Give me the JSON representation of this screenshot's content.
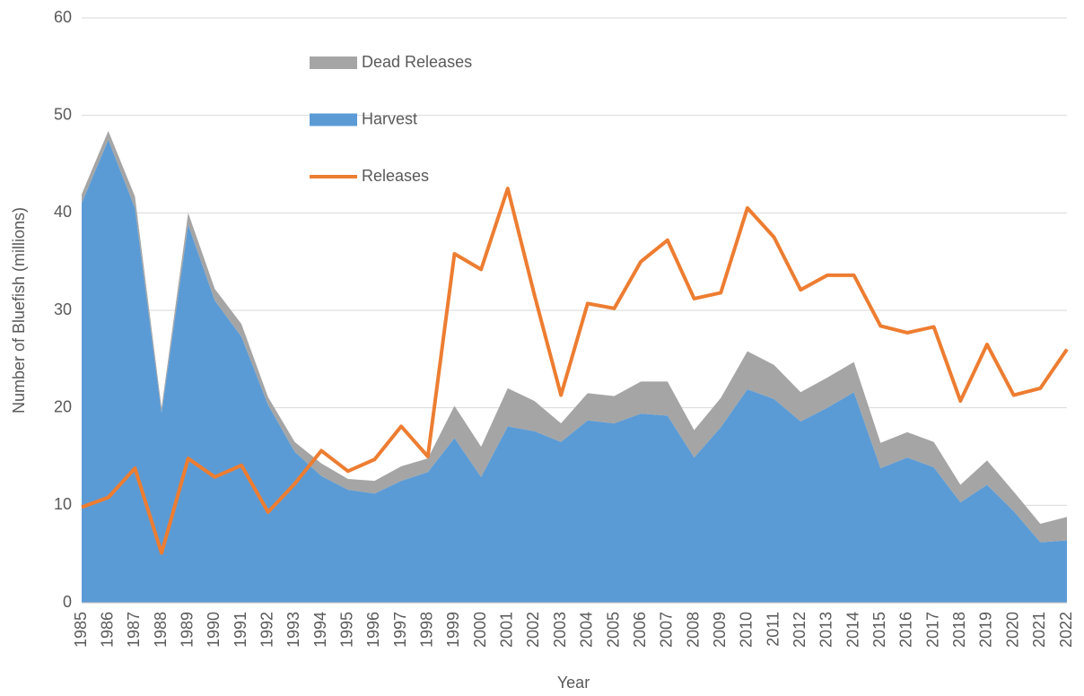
{
  "chart_data": {
    "type": "area",
    "xlabel": "Year",
    "ylabel": "Number of Bluefish (millions)",
    "categories": [
      "1985",
      "1986",
      "1987",
      "1988",
      "1989",
      "1990",
      "1991",
      "1992",
      "1993",
      "1994",
      "1995",
      "1996",
      "1997",
      "1998",
      "1999",
      "2000",
      "2001",
      "2002",
      "2003",
      "2004",
      "2005",
      "2006",
      "2007",
      "2008",
      "2009",
      "2010",
      "2011",
      "2012",
      "2013",
      "2014",
      "2015",
      "2016",
      "2017",
      "2018",
      "2019",
      "2020",
      "2021",
      "2022"
    ],
    "series": [
      {
        "name": "Harvest",
        "type": "area",
        "color": "#5b9bd5",
        "values": [
          41,
          47.5,
          40.5,
          19.5,
          38.8,
          31,
          27.3,
          20.3,
          15.5,
          13,
          11.6,
          11.2,
          12.5,
          13.4,
          16.9,
          12.9,
          18.1,
          17.6,
          16.5,
          18.7,
          18.4,
          19.4,
          19.2,
          14.9,
          18.0,
          21.9,
          20.9,
          18.6,
          20.0,
          21.6,
          13.8,
          14.9,
          13.9,
          10.3,
          12.1,
          9.4,
          6.2,
          6.4
        ]
      },
      {
        "name": "Dead Releases",
        "type": "area",
        "color": "#a5a5a5",
        "values": [
          0.9,
          0.9,
          1.2,
          0.5,
          1.2,
          1.2,
          1.3,
          0.8,
          1.0,
          1.3,
          1.1,
          1.3,
          1.5,
          1.4,
          3.3,
          3.1,
          3.9,
          3.1,
          1.9,
          2.8,
          2.8,
          3.3,
          3.5,
          2.8,
          3.0,
          3.9,
          3.5,
          3.0,
          3.1,
          3.1,
          2.6,
          2.6,
          2.6,
          1.8,
          2.5,
          2.0,
          1.9,
          2.4
        ]
      },
      {
        "name": "Releases",
        "type": "line",
        "color": "#ed7d31",
        "values": [
          9.8,
          10.8,
          13.8,
          5.1,
          14.8,
          12.9,
          14.1,
          9.3,
          12.2,
          15.6,
          13.5,
          14.7,
          18.1,
          15.0,
          35.8,
          34.2,
          42.5,
          31.6,
          21.3,
          30.7,
          30.2,
          35.0,
          37.2,
          31.2,
          31.8,
          40.5,
          37.5,
          32.1,
          33.6,
          33.6,
          28.4,
          27.7,
          28.3,
          20.7,
          26.5,
          21.3,
          22.0,
          26.0
        ]
      }
    ],
    "ylim": [
      0,
      60
    ],
    "yticks": [
      0,
      10,
      20,
      30,
      40,
      50,
      60
    ],
    "grid": true,
    "stacked": true
  }
}
